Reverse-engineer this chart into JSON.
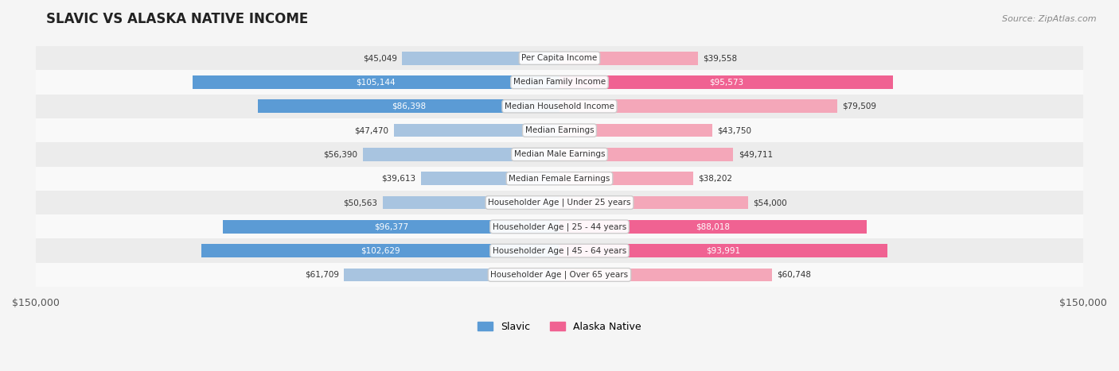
{
  "title": "SLAVIC VS ALASKA NATIVE INCOME",
  "source": "Source: ZipAtlas.com",
  "categories": [
    "Per Capita Income",
    "Median Family Income",
    "Median Household Income",
    "Median Earnings",
    "Median Male Earnings",
    "Median Female Earnings",
    "Householder Age | Under 25 years",
    "Householder Age | 25 - 44 years",
    "Householder Age | 45 - 64 years",
    "Householder Age | Over 65 years"
  ],
  "slavic_values": [
    45049,
    105144,
    86398,
    47470,
    56390,
    39613,
    50563,
    96377,
    102629,
    61709
  ],
  "alaska_values": [
    39558,
    95573,
    79509,
    43750,
    49711,
    38202,
    54000,
    88018,
    93991,
    60748
  ],
  "slavic_labels": [
    "$45,049",
    "$105,144",
    "$86,398",
    "$47,470",
    "$56,390",
    "$39,613",
    "$50,563",
    "$96,377",
    "$102,629",
    "$61,709"
  ],
  "alaska_labels": [
    "$39,558",
    "$95,573",
    "$79,509",
    "$43,750",
    "$49,711",
    "$38,202",
    "$54,000",
    "$88,018",
    "$93,991",
    "$60,748"
  ],
  "max_value": 150000,
  "slavic_color_light": "#a8c4e0",
  "slavic_color_dark": "#5b9bd5",
  "alaska_color_light": "#f4a7b9",
  "alaska_color_dark": "#f06292",
  "label_threshold": 80000,
  "background_color": "#f5f5f5",
  "row_bg_color": "#ececec",
  "row_bg_light": "#f9f9f9"
}
